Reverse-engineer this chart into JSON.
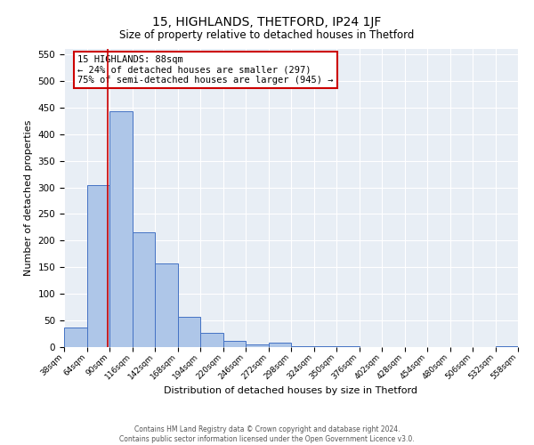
{
  "title": "15, HIGHLANDS, THETFORD, IP24 1JF",
  "subtitle": "Size of property relative to detached houses in Thetford",
  "xlabel": "Distribution of detached houses by size in Thetford",
  "ylabel": "Number of detached properties",
  "bin_edges": [
    38,
    64,
    90,
    116,
    142,
    168,
    194,
    220,
    246,
    272,
    298,
    324,
    350,
    376,
    402,
    428,
    454,
    480,
    506,
    532,
    558
  ],
  "bar_heights": [
    37,
    305,
    443,
    215,
    157,
    57,
    27,
    12,
    5,
    9,
    2,
    2,
    1,
    0,
    0,
    0,
    0,
    0,
    0,
    1
  ],
  "bar_color": "#aec6e8",
  "bar_edge_color": "#4472c4",
  "bg_color": "#e8eef5",
  "grid_color": "#ffffff",
  "property_size": 88,
  "red_line_color": "#cc0000",
  "annotation_line1": "15 HIGHLANDS: 88sqm",
  "annotation_line2": "← 24% of detached houses are smaller (297)",
  "annotation_line3": "75% of semi-detached houses are larger (945) →",
  "annotation_box_color": "#ffffff",
  "annotation_box_edge_color": "#cc0000",
  "ylim": [
    0,
    560
  ],
  "yticks": [
    0,
    50,
    100,
    150,
    200,
    250,
    300,
    350,
    400,
    450,
    500,
    550
  ],
  "footer_line1": "Contains HM Land Registry data © Crown copyright and database right 2024.",
  "footer_line2": "Contains public sector information licensed under the Open Government Licence v3.0."
}
